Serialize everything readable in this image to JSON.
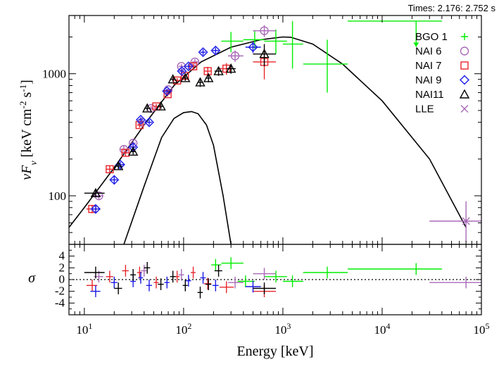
{
  "header": {
    "times_text": "Times: 2.176: 2.752 s"
  },
  "colors": {
    "BGO 1": "#00ee00",
    "NAI  6": "#a96ab8",
    "NAI  7": "#e8262c",
    "NAI  9": "#1a1ae6",
    "NAI11": "#000000",
    "LLE": "#a96ab8",
    "model": "#000000"
  },
  "chart_data": [
    {
      "panel": "spectrum",
      "type": "scatter",
      "xscale": "log",
      "yscale": "log",
      "xlim": [
        7,
        100000
      ],
      "ylim": [
        40,
        3000
      ],
      "xlabel": "Energy [keV]",
      "ylabel": "νF_ν [keV cm^-2 s^-1]",
      "xticks": [
        10,
        100,
        1000,
        10000,
        100000
      ],
      "xtick_labels": [
        "10^1",
        "10^2",
        "10^3",
        "10^4",
        "10^5"
      ],
      "yticks": [
        100,
        1000
      ],
      "ytick_labels": [
        "100",
        "1000"
      ],
      "legend": {
        "position": "top-right",
        "entries": [
          {
            "label": "BGO 1",
            "marker": "plus"
          },
          {
            "label": "NAI  6",
            "marker": "circle"
          },
          {
            "label": "NAI  7",
            "marker": "square"
          },
          {
            "label": "NAI  9",
            "marker": "diamond"
          },
          {
            "label": "NAI11",
            "marker": "triangle"
          },
          {
            "label": "LLE",
            "marker": "x"
          }
        ]
      },
      "series": [
        {
          "name": "BGO 1",
          "marker": "plus",
          "points": [
            {
              "x": 300,
              "y": 1850,
              "xlo": 240,
              "xhi": 400,
              "ylo": 1500,
              "yhi": 2200
            },
            {
              "x": 520,
              "y": 1900,
              "xlo": 400,
              "xhi": 650,
              "ylo": 1600,
              "yhi": 2250
            },
            {
              "x": 850,
              "y": 1850,
              "xlo": 650,
              "xhi": 1100,
              "ylo": 1450,
              "yhi": 2300
            },
            {
              "x": 1250,
              "y": 1750,
              "xlo": 1000,
              "xhi": 1600,
              "ylo": 1100,
              "yhi": 2700
            },
            {
              "x": 2800,
              "y": 1200,
              "xlo": 1600,
              "xhi": 4500,
              "ylo": 700,
              "yhi": 1900
            },
            {
              "x": 22000,
              "y": 2700,
              "xlo": 4500,
              "xhi": 40000,
              "ylo": 1800,
              "yhi": 2800,
              "upper_limit": true
            }
          ]
        },
        {
          "name": "NAI  6",
          "marker": "circle",
          "points": [
            {
              "x": 14,
              "y": 100,
              "xlo": 12.5,
              "xhi": 15.5,
              "ylo": 92,
              "yhi": 108
            },
            {
              "x": 25,
              "y": 240,
              "xlo": 23,
              "xhi": 27,
              "ylo": 225,
              "yhi": 255
            },
            {
              "x": 31,
              "y": 270,
              "xlo": 29,
              "xhi": 33,
              "ylo": 255,
              "yhi": 285
            },
            {
              "x": 38,
              "y": 400,
              "xlo": 36,
              "xhi": 40,
              "ylo": 380,
              "yhi": 420
            },
            {
              "x": 47,
              "y": 520,
              "xlo": 44,
              "xhi": 50,
              "ylo": 495,
              "yhi": 545
            },
            {
              "x": 70,
              "y": 740,
              "xlo": 66,
              "xhi": 74,
              "ylo": 710,
              "yhi": 770
            },
            {
              "x": 95,
              "y": 1150,
              "xlo": 89,
              "xhi": 101,
              "ylo": 1100,
              "yhi": 1200
            },
            {
              "x": 130,
              "y": 1250,
              "xlo": 122,
              "xhi": 140,
              "ylo": 1180,
              "yhi": 1320
            },
            {
              "x": 330,
              "y": 1400,
              "xlo": 280,
              "xhi": 400,
              "ylo": 1250,
              "yhi": 1550
            },
            {
              "x": 650,
              "y": 2250,
              "xlo": 500,
              "xhi": 850,
              "ylo": 2000,
              "yhi": 2500
            }
          ]
        },
        {
          "name": "NAI  7",
          "marker": "square",
          "points": [
            {
              "x": 12,
              "y": 78,
              "xlo": 10.5,
              "xhi": 13.5,
              "ylo": 72,
              "yhi": 84
            },
            {
              "x": 18,
              "y": 165,
              "xlo": 16.5,
              "xhi": 19.5,
              "ylo": 155,
              "yhi": 175
            },
            {
              "x": 26,
              "y": 225,
              "xlo": 24,
              "xhi": 28,
              "ylo": 212,
              "yhi": 238
            },
            {
              "x": 36,
              "y": 380,
              "xlo": 34,
              "xhi": 38,
              "ylo": 362,
              "yhi": 398
            },
            {
              "x": 53,
              "y": 540,
              "xlo": 50,
              "xhi": 56,
              "ylo": 515,
              "yhi": 565
            },
            {
              "x": 69,
              "y": 680,
              "xlo": 65,
              "xhi": 73,
              "ylo": 650,
              "yhi": 710
            },
            {
              "x": 86,
              "y": 880,
              "xlo": 81,
              "xhi": 91,
              "ylo": 840,
              "yhi": 920
            },
            {
              "x": 103,
              "y": 960,
              "xlo": 97,
              "xhi": 109,
              "ylo": 915,
              "yhi": 1005
            },
            {
              "x": 125,
              "y": 1150,
              "xlo": 118,
              "xhi": 132,
              "ylo": 1090,
              "yhi": 1210
            },
            {
              "x": 175,
              "y": 1050,
              "xlo": 160,
              "xhi": 190,
              "ylo": 960,
              "yhi": 1140
            },
            {
              "x": 270,
              "y": 1100,
              "xlo": 230,
              "xhi": 320,
              "ylo": 980,
              "yhi": 1220
            },
            {
              "x": 650,
              "y": 1250,
              "xlo": 500,
              "xhi": 850,
              "ylo": 900,
              "yhi": 1600
            }
          ]
        },
        {
          "name": "NAI  9",
          "marker": "diamond",
          "points": [
            {
              "x": 13,
              "y": 78,
              "xlo": 11.5,
              "xhi": 14.5,
              "ylo": 72,
              "yhi": 84
            },
            {
              "x": 20,
              "y": 135,
              "xlo": 18.5,
              "xhi": 21.5,
              "ylo": 126,
              "yhi": 144
            },
            {
              "x": 23,
              "y": 180,
              "xlo": 21,
              "xhi": 25,
              "ylo": 170,
              "yhi": 190
            },
            {
              "x": 31,
              "y": 250,
              "xlo": 29,
              "xhi": 33,
              "ylo": 236,
              "yhi": 264
            },
            {
              "x": 37,
              "y": 420,
              "xlo": 35,
              "xhi": 39,
              "ylo": 400,
              "yhi": 440
            },
            {
              "x": 45,
              "y": 400,
              "xlo": 42,
              "xhi": 48,
              "ylo": 380,
              "yhi": 420
            },
            {
              "x": 68,
              "y": 720,
              "xlo": 64,
              "xhi": 72,
              "ylo": 690,
              "yhi": 750
            },
            {
              "x": 96,
              "y": 1050,
              "xlo": 90,
              "xhi": 102,
              "ylo": 1000,
              "yhi": 1100
            },
            {
              "x": 112,
              "y": 1150,
              "xlo": 105,
              "xhi": 119,
              "ylo": 1090,
              "yhi": 1210
            },
            {
              "x": 157,
              "y": 1500,
              "xlo": 147,
              "xhi": 167,
              "ylo": 1420,
              "yhi": 1580
            },
            {
              "x": 210,
              "y": 1550,
              "xlo": 195,
              "xhi": 225,
              "ylo": 1460,
              "yhi": 1640
            },
            {
              "x": 500,
              "y": 1650,
              "xlo": 420,
              "xhi": 600,
              "ylo": 1480,
              "yhi": 1820
            }
          ]
        },
        {
          "name": "NAI11",
          "marker": "triangle",
          "points": [
            {
              "x": 13,
              "y": 105,
              "xlo": 10,
              "xhi": 16,
              "ylo": 98,
              "yhi": 112
            },
            {
              "x": 22,
              "y": 175,
              "xlo": 20,
              "xhi": 24,
              "ylo": 165,
              "yhi": 185
            },
            {
              "x": 31,
              "y": 230,
              "xlo": 29,
              "xhi": 33,
              "ylo": 218,
              "yhi": 242
            },
            {
              "x": 43,
              "y": 520,
              "xlo": 40,
              "xhi": 46,
              "ylo": 495,
              "yhi": 545
            },
            {
              "x": 59,
              "y": 540,
              "xlo": 55,
              "xhi": 63,
              "ylo": 515,
              "yhi": 565
            },
            {
              "x": 78,
              "y": 900,
              "xlo": 73,
              "xhi": 83,
              "ylo": 860,
              "yhi": 940
            },
            {
              "x": 104,
              "y": 920,
              "xlo": 98,
              "xhi": 110,
              "ylo": 875,
              "yhi": 965
            },
            {
              "x": 147,
              "y": 850,
              "xlo": 138,
              "xhi": 156,
              "ylo": 780,
              "yhi": 920
            },
            {
              "x": 178,
              "y": 920,
              "xlo": 166,
              "xhi": 190,
              "ylo": 850,
              "yhi": 990
            },
            {
              "x": 225,
              "y": 1050,
              "xlo": 205,
              "xhi": 245,
              "ylo": 960,
              "yhi": 1140
            },
            {
              "x": 300,
              "y": 1100,
              "xlo": 270,
              "xhi": 335,
              "ylo": 1000,
              "yhi": 1200
            },
            {
              "x": 650,
              "y": 1450,
              "xlo": 500,
              "xhi": 850,
              "ylo": 1150,
              "yhi": 1750
            }
          ]
        },
        {
          "name": "LLE",
          "marker": "x",
          "points": [
            {
              "x": 70000,
              "y": 62,
              "xlo": 30000,
              "xhi": 100000,
              "ylo": 42,
              "yhi": 90
            }
          ]
        }
      ],
      "model_curves": [
        {
          "name": "total",
          "x": [
            7,
            10,
            20,
            40,
            80,
            150,
            300,
            600,
            1000,
            1200,
            2000,
            4000,
            10000,
            30000,
            70000
          ],
          "y": [
            55,
            80,
            170,
            380,
            800,
            1250,
            1650,
            1900,
            2000,
            1990,
            1750,
            1200,
            600,
            200,
            55
          ]
        },
        {
          "name": "component",
          "x": [
            25,
            40,
            60,
            80,
            100,
            120,
            140,
            170,
            200,
            250,
            300
          ],
          "y": [
            40,
            120,
            300,
            430,
            480,
            490,
            470,
            380,
            260,
            100,
            40
          ]
        }
      ]
    },
    {
      "panel": "residuals",
      "type": "scatter",
      "xscale": "log",
      "xlim": [
        7,
        100000
      ],
      "ylim": [
        -6,
        6
      ],
      "ylabel": "σ",
      "yticks": [
        -4,
        -2,
        0,
        2,
        4
      ],
      "ytick_labels": [
        "-4",
        "-2",
        "0",
        "2",
        "4"
      ],
      "zero_line": "dotted",
      "series": [
        {
          "name": "BGO 1",
          "points": [
            {
              "x": 210,
              "y": 2.5,
              "xlo": 190,
              "xhi": 240
            },
            {
              "x": 300,
              "y": 2.8,
              "xlo": 240,
              "xhi": 400
            },
            {
              "x": 420,
              "y": -0.3,
              "xlo": 350,
              "xhi": 520
            },
            {
              "x": 850,
              "y": 0.5,
              "xlo": 650,
              "xhi": 1100
            },
            {
              "x": 1250,
              "y": -0.3,
              "xlo": 1000,
              "xhi": 1600
            },
            {
              "x": 2800,
              "y": 1.2,
              "xlo": 1600,
              "xhi": 4500
            },
            {
              "x": 22000,
              "y": 1.8,
              "xlo": 4500,
              "xhi": 40000
            }
          ]
        },
        {
          "name": "NAI  6",
          "points": [
            {
              "x": 14,
              "y": 0.5,
              "xlo": 12.5,
              "xhi": 15.5
            },
            {
              "x": 40,
              "y": 1.5,
              "xlo": 37,
              "xhi": 43
            },
            {
              "x": 95,
              "y": 0.8,
              "xlo": 89,
              "xhi": 101
            },
            {
              "x": 330,
              "y": -0.5,
              "xlo": 280,
              "xhi": 400
            },
            {
              "x": 650,
              "y": 1.0,
              "xlo": 500,
              "xhi": 850
            }
          ]
        },
        {
          "name": "NAI  7",
          "points": [
            {
              "x": 12,
              "y": -1.0,
              "xlo": 10.5,
              "xhi": 13.5
            },
            {
              "x": 18,
              "y": 0.5,
              "xlo": 16.5,
              "xhi": 19.5
            },
            {
              "x": 26,
              "y": 1.5,
              "xlo": 24,
              "xhi": 28
            },
            {
              "x": 36,
              "y": 1.2,
              "xlo": 34,
              "xhi": 38
            },
            {
              "x": 53,
              "y": -0.5,
              "xlo": 50,
              "xhi": 56
            },
            {
              "x": 86,
              "y": 0.5,
              "xlo": 81,
              "xhi": 91
            },
            {
              "x": 125,
              "y": 1.2,
              "xlo": 118,
              "xhi": 132
            },
            {
              "x": 175,
              "y": -0.7,
              "xlo": 160,
              "xhi": 190
            },
            {
              "x": 270,
              "y": -1.3,
              "xlo": 230,
              "xhi": 320
            },
            {
              "x": 650,
              "y": -2.0,
              "xlo": 500,
              "xhi": 850
            }
          ]
        },
        {
          "name": "NAI  9",
          "points": [
            {
              "x": 13,
              "y": -2.0,
              "xlo": 11.5,
              "xhi": 14.5
            },
            {
              "x": 20,
              "y": -0.5,
              "xlo": 18.5,
              "xhi": 21.5
            },
            {
              "x": 31,
              "y": -0.3,
              "xlo": 29,
              "xhi": 33
            },
            {
              "x": 37,
              "y": 0.3,
              "xlo": 35,
              "xhi": 39
            },
            {
              "x": 45,
              "y": -1.0,
              "xlo": 42,
              "xhi": 48
            },
            {
              "x": 68,
              "y": -0.5,
              "xlo": 64,
              "xhi": 72
            },
            {
              "x": 112,
              "y": -0.2,
              "xlo": 105,
              "xhi": 119
            },
            {
              "x": 157,
              "y": 0.3,
              "xlo": 147,
              "xhi": 167
            },
            {
              "x": 210,
              "y": -1.0,
              "xlo": 195,
              "xhi": 225
            },
            {
              "x": 500,
              "y": -1.2,
              "xlo": 420,
              "xhi": 600
            }
          ]
        },
        {
          "name": "NAI11",
          "points": [
            {
              "x": 13,
              "y": 1.2,
              "xlo": 10,
              "xhi": 16
            },
            {
              "x": 22,
              "y": -1.5,
              "xlo": 20,
              "xhi": 24
            },
            {
              "x": 31,
              "y": 0.8,
              "xlo": 29,
              "xhi": 33
            },
            {
              "x": 43,
              "y": 2.0,
              "xlo": 40,
              "xhi": 46
            },
            {
              "x": 59,
              "y": -0.8,
              "xlo": 55,
              "xhi": 63
            },
            {
              "x": 78,
              "y": 0.5,
              "xlo": 73,
              "xhi": 83
            },
            {
              "x": 104,
              "y": -1.0,
              "xlo": 98,
              "xhi": 110
            },
            {
              "x": 147,
              "y": -2.2,
              "xlo": 138,
              "xhi": 156
            },
            {
              "x": 178,
              "y": -0.8,
              "xlo": 166,
              "xhi": 190
            },
            {
              "x": 225,
              "y": 1.5,
              "xlo": 205,
              "xhi": 245
            },
            {
              "x": 650,
              "y": -1.5,
              "xlo": 500,
              "xhi": 850
            }
          ]
        },
        {
          "name": "LLE",
          "points": [
            {
              "x": 70000,
              "y": -0.5,
              "xlo": 30000,
              "xhi": 100000
            }
          ]
        }
      ]
    }
  ]
}
